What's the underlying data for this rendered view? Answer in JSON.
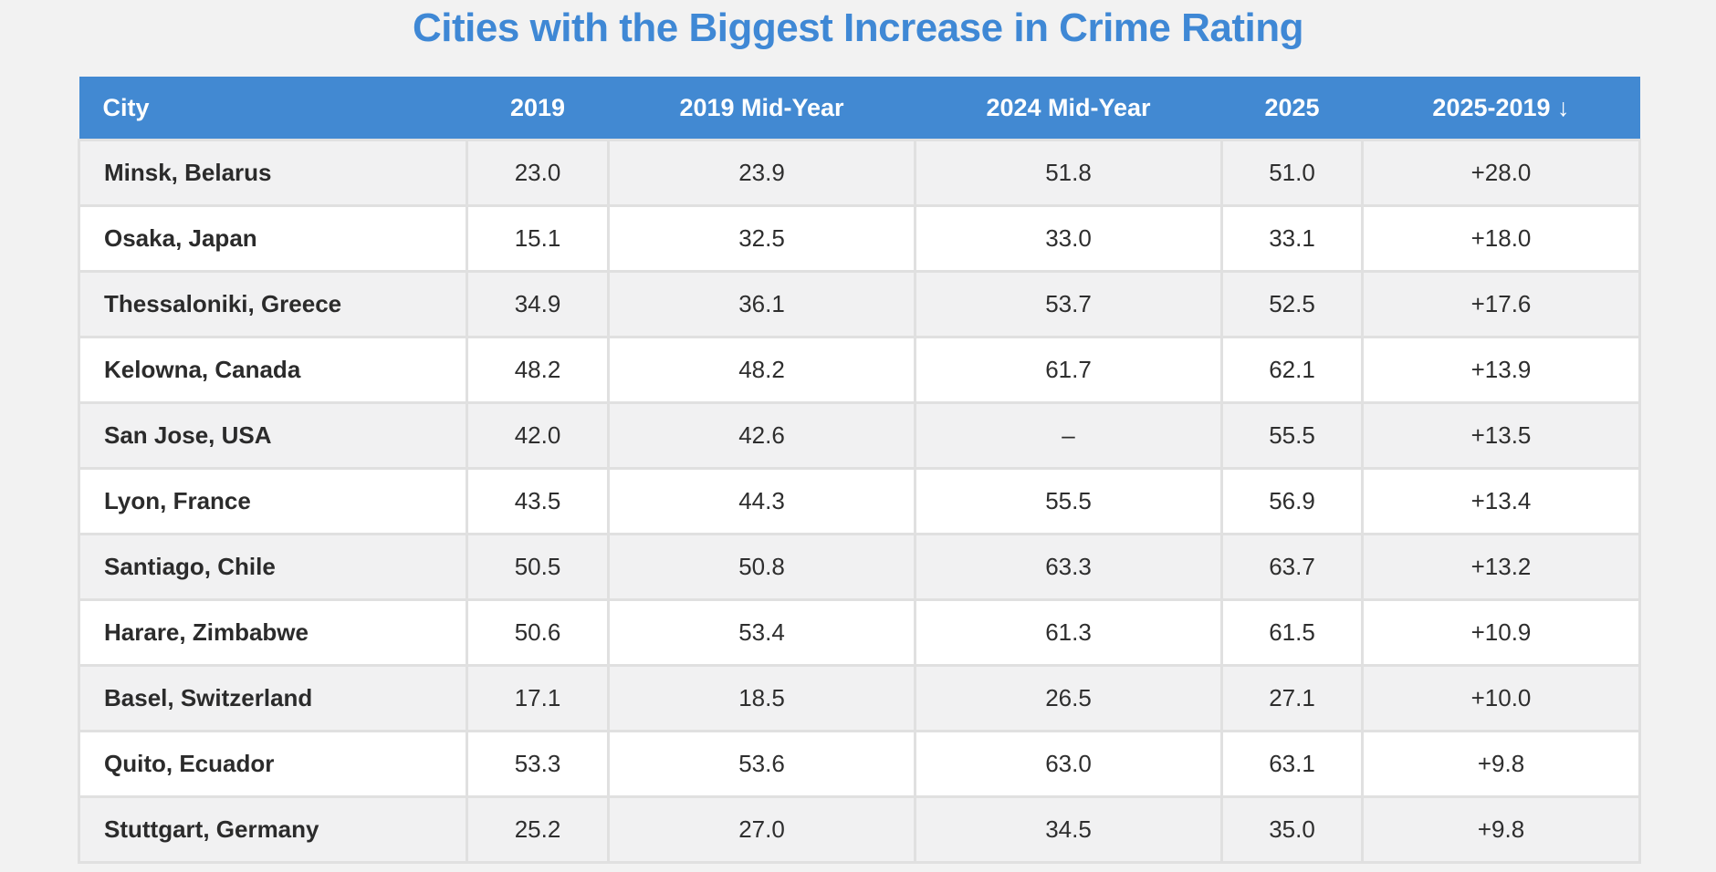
{
  "title": {
    "text": "Cities with the Biggest Increase in Crime Rating"
  },
  "colors": {
    "page_background": "#f2f2f2",
    "title_blue": "#3f88d5",
    "header_background": "#4289d2",
    "header_text": "#ffffff",
    "row_alt_background": "#f1f1f2",
    "row_background": "#ffffff",
    "border": "#e0e0e0",
    "cell_text": "#2e2e2e"
  },
  "chart_data": {
    "type": "table",
    "title": "Cities with the Biggest Increase in Crime Rating",
    "columns": [
      {
        "label": "City",
        "align": "left"
      },
      {
        "label": "2019",
        "align": "center"
      },
      {
        "label": "2019 Mid-Year",
        "align": "center"
      },
      {
        "label": "2024 Mid-Year",
        "align": "center"
      },
      {
        "label": "2025",
        "align": "center"
      },
      {
        "label": "2025-2019",
        "align": "center",
        "sort_arrow": "↓"
      }
    ],
    "sorted_by": {
      "column": "2025-2019",
      "direction": "descending",
      "arrow_icon": "↓"
    },
    "rows": [
      [
        "Minsk, Belarus",
        "23.0",
        "23.9",
        "51.8",
        "51.0",
        "+28.0"
      ],
      [
        "Osaka, Japan",
        "15.1",
        "32.5",
        "33.0",
        "33.1",
        "+18.0"
      ],
      [
        "Thessaloniki, Greece",
        "34.9",
        "36.1",
        "53.7",
        "52.5",
        "+17.6"
      ],
      [
        "Kelowna, Canada",
        "48.2",
        "48.2",
        "61.7",
        "62.1",
        "+13.9"
      ],
      [
        "San Jose, USA",
        "42.0",
        "42.6",
        "–",
        "55.5",
        "+13.5"
      ],
      [
        "Lyon, France",
        "43.5",
        "44.3",
        "55.5",
        "56.9",
        "+13.4"
      ],
      [
        "Santiago, Chile",
        "50.5",
        "50.8",
        "63.3",
        "63.7",
        "+13.2"
      ],
      [
        "Harare, Zimbabwe",
        "50.6",
        "53.4",
        "61.3",
        "61.5",
        "+10.9"
      ],
      [
        "Basel, Switzerland",
        "17.1",
        "18.5",
        "26.5",
        "27.1",
        "+10.0"
      ],
      [
        "Quito, Ecuador",
        "53.3",
        "53.6",
        "63.0",
        "63.1",
        "+9.8"
      ],
      [
        "Stuttgart, Germany",
        "25.2",
        "27.0",
        "34.5",
        "35.0",
        "+9.8"
      ]
    ]
  }
}
